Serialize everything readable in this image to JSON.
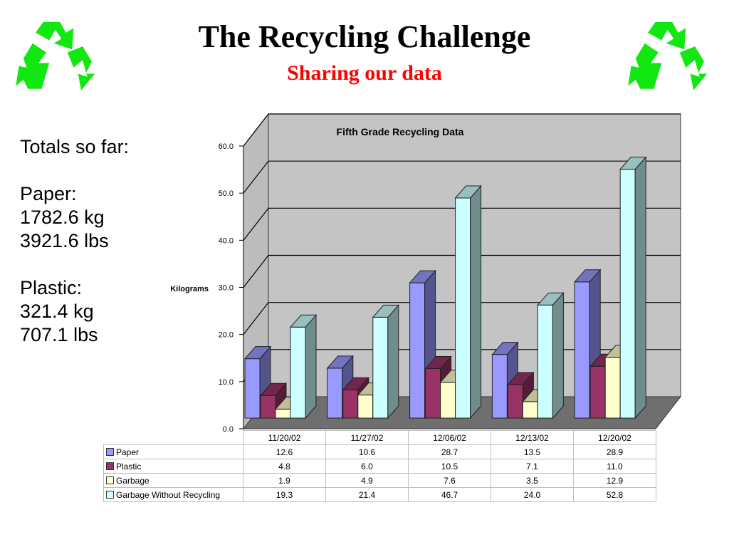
{
  "header": {
    "title": "The Recycling Challenge",
    "subtitle": "Sharing our data",
    "logo_icon": "recycle-icon",
    "logo_color": "#11e811"
  },
  "totals": {
    "heading": "Totals so far:",
    "paper_label": "Paper:",
    "paper_kg": "1782.6 kg",
    "paper_lbs": "3921.6 lbs",
    "plastic_label": "Plastic:",
    "plastic_kg": "321.4 kg",
    "plastic_lbs": "707.1 lbs"
  },
  "chart_data": {
    "type": "bar",
    "title": "Fifth Grade Recycling Data",
    "ylabel": "Kilograms",
    "xlabel": "",
    "ylim": [
      0,
      60
    ],
    "y_ticks": [
      "0.0",
      "10.0",
      "20.0",
      "30.0",
      "40.0",
      "50.0",
      "60.0"
    ],
    "categories": [
      "11/20/02",
      "11/27/02",
      "12/06/02",
      "12/13/02",
      "12/20/02"
    ],
    "grid": true,
    "style": "3d",
    "series": [
      {
        "name": "Paper",
        "color": "#9999ff",
        "values": [
          12.6,
          10.6,
          28.7,
          13.5,
          28.9
        ]
      },
      {
        "name": "Plastic",
        "color": "#993366",
        "values": [
          4.8,
          6.0,
          10.5,
          7.1,
          11.0
        ]
      },
      {
        "name": "Garbage",
        "color": "#ffffcc",
        "values": [
          1.9,
          4.9,
          7.6,
          3.5,
          12.9
        ]
      },
      {
        "name": "Garbage Without Recycling",
        "color": "#ccffff",
        "values": [
          19.3,
          21.4,
          46.7,
          24.0,
          52.8
        ]
      }
    ],
    "table_values": [
      [
        "12.6",
        "10.6",
        "28.7",
        "13.5",
        "28.9"
      ],
      [
        "4.8",
        "6.0",
        "10.5",
        "7.1",
        "11.0"
      ],
      [
        "1.9",
        "4.9",
        "7.6",
        "3.5",
        "12.9"
      ],
      [
        "19.3",
        "21.4",
        "46.7",
        "24.0",
        "52.8"
      ]
    ]
  }
}
